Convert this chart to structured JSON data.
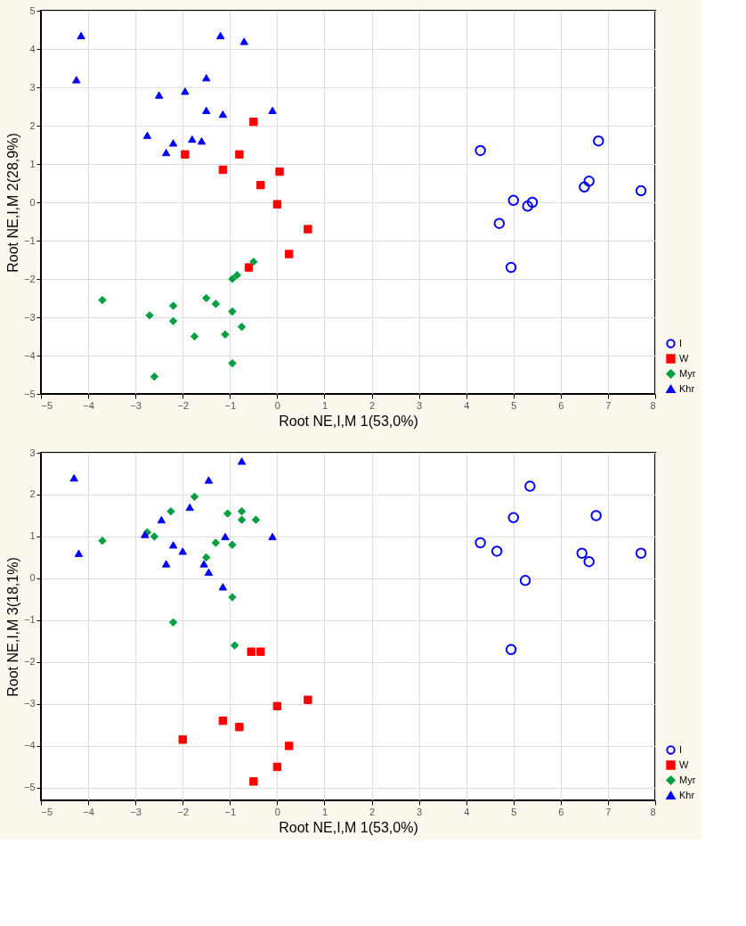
{
  "chart_data": [
    {
      "type": "scatter",
      "xlabel": "Root NE,I,M 1(53,0%)",
      "ylabel": "Root NE,I,M 2(28,9%)",
      "xlim": [
        -5,
        8
      ],
      "xticks": [
        -5,
        -4,
        -3,
        -2,
        -1,
        0,
        1,
        2,
        3,
        4,
        5,
        6,
        7,
        8
      ],
      "ylim": [
        -5,
        5
      ],
      "yticks": [
        -5,
        -4,
        -3,
        -2,
        -1,
        0,
        1,
        2,
        3,
        4,
        5
      ],
      "grid": true,
      "legend": "bottom right",
      "series": [
        {
          "name": "I",
          "color": "#0000ff",
          "marker": "circle",
          "x": [
            4.3,
            6.8,
            6.6,
            6.5,
            7.7,
            5.0,
            5.4,
            5.3,
            4.7,
            4.95
          ],
          "values": [
            1.35,
            1.6,
            0.55,
            0.4,
            0.3,
            0.05,
            0.0,
            -0.1,
            -0.55,
            -1.7
          ]
        },
        {
          "name": "W",
          "color": "#ff0000",
          "marker": "square",
          "x": [
            -0.5,
            -1.95,
            -0.8,
            -1.15,
            -0.35,
            0.05,
            0.0,
            0.65,
            0.25,
            -0.6
          ],
          "values": [
            2.1,
            1.25,
            1.25,
            0.85,
            0.45,
            0.8,
            -0.05,
            -0.7,
            -1.35,
            -1.7
          ]
        },
        {
          "name": "Myr",
          "color": "#00a040",
          "marker": "diamond",
          "x": [
            -3.7,
            -2.7,
            -2.2,
            -2.2,
            -1.5,
            -1.3,
            -0.95,
            -0.5,
            -0.85,
            -0.95,
            -0.75,
            -1.75,
            -1.1,
            -0.95,
            -2.6
          ],
          "values": [
            -2.55,
            -2.95,
            -2.7,
            -3.1,
            -2.5,
            -2.65,
            -2.85,
            -1.55,
            -1.9,
            -2.0,
            -3.25,
            -3.5,
            -3.45,
            -4.2,
            -4.55
          ]
        },
        {
          "name": "Khr",
          "color": "#0000ff",
          "marker": "triangle",
          "x": [
            -4.15,
            -4.25,
            -1.2,
            -0.7,
            -2.5,
            -1.95,
            -1.5,
            -1.5,
            -1.15,
            -0.1,
            -2.75,
            -2.2,
            -1.8,
            -1.6,
            -2.35
          ],
          "values": [
            4.35,
            3.2,
            4.35,
            4.2,
            2.8,
            2.9,
            3.25,
            2.4,
            2.3,
            2.4,
            1.75,
            1.55,
            1.65,
            1.6,
            1.3
          ]
        }
      ]
    },
    {
      "type": "scatter",
      "xlabel": "Root NE,I,M 1(53,0%)",
      "ylabel": "Root NE,I,M 3(18,1%)",
      "xlim": [
        -5,
        8
      ],
      "xticks": [
        -5,
        -4,
        -3,
        -2,
        -1,
        0,
        1,
        2,
        3,
        4,
        5,
        6,
        7,
        8
      ],
      "ylim": [
        -5.3,
        3
      ],
      "yticks": [
        -5,
        -4,
        -3,
        -2,
        -1,
        0,
        1,
        2,
        3
      ],
      "grid": true,
      "legend": "bottom right",
      "series": [
        {
          "name": "I",
          "color": "#0000ff",
          "marker": "circle",
          "x": [
            5.35,
            5.0,
            6.75,
            4.3,
            4.65,
            6.45,
            6.6,
            7.7,
            5.25,
            4.95
          ],
          "values": [
            2.2,
            1.45,
            1.5,
            0.85,
            0.65,
            0.6,
            0.4,
            0.6,
            -0.05,
            -1.7
          ]
        },
        {
          "name": "W",
          "color": "#ff0000",
          "marker": "square",
          "x": [
            -0.55,
            -0.35,
            0.65,
            0.0,
            -1.15,
            -0.8,
            -2.0,
            0.25,
            0.0,
            -0.5
          ],
          "values": [
            -1.75,
            -1.75,
            -2.9,
            -3.05,
            -3.4,
            -3.55,
            -3.85,
            -4.0,
            -4.5,
            -4.85
          ]
        },
        {
          "name": "Myr",
          "color": "#00a040",
          "marker": "diamond",
          "x": [
            -1.75,
            -2.25,
            -1.05,
            -0.75,
            -0.75,
            -0.45,
            -2.75,
            -2.6,
            -3.7,
            -1.3,
            -0.95,
            -1.5,
            -0.95,
            -2.2,
            -0.9
          ],
          "values": [
            1.95,
            1.6,
            1.55,
            1.6,
            1.4,
            1.4,
            1.1,
            1.0,
            0.9,
            0.85,
            0.8,
            0.5,
            -0.45,
            -1.05,
            -1.6
          ]
        },
        {
          "name": "Khr",
          "color": "#0000ff",
          "marker": "triangle",
          "x": [
            -4.3,
            -0.75,
            -1.45,
            -1.85,
            -2.45,
            -2.8,
            -1.1,
            -0.1,
            -4.2,
            -2.2,
            -2.0,
            -2.35,
            -1.55,
            -1.45,
            -1.15
          ],
          "values": [
            2.4,
            2.8,
            2.35,
            1.7,
            1.4,
            1.05,
            1.0,
            1.0,
            0.6,
            0.8,
            0.65,
            0.35,
            0.35,
            0.15,
            -0.2
          ]
        }
      ]
    }
  ]
}
